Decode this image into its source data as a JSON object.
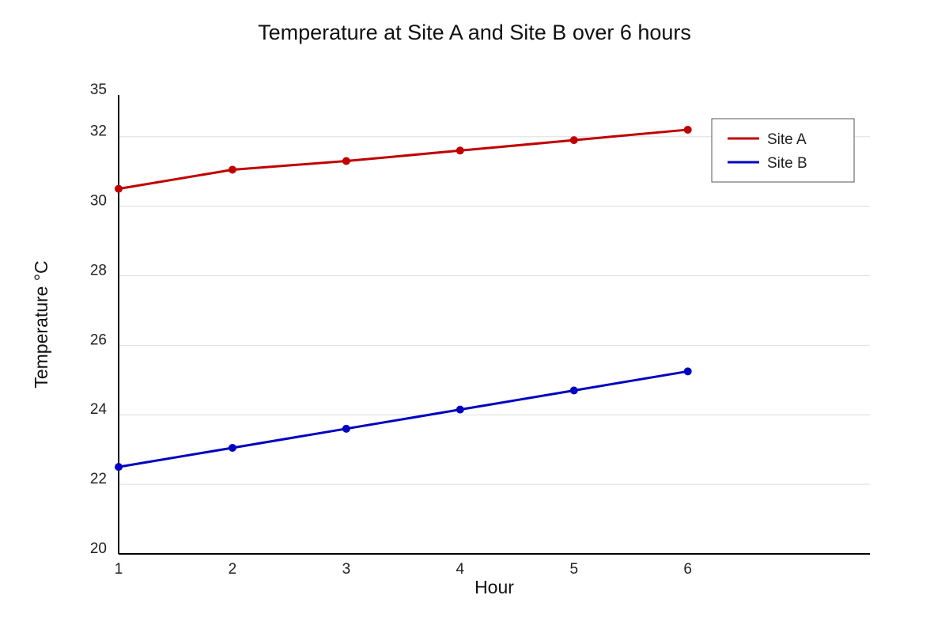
{
  "chart_data": {
    "type": "line",
    "title": "Temperature at Site A and Site B over 6 hours",
    "xlabel": "Hour",
    "ylabel": "Temperature °C",
    "x": [
      1,
      2,
      3,
      4,
      5,
      6
    ],
    "x_ticks": [
      "1",
      "2",
      "3",
      "4",
      "5",
      "6"
    ],
    "y_ticks": [
      "20",
      "22",
      "24",
      "26",
      "28",
      "30",
      "32",
      "35"
    ],
    "xlim": [
      1,
      7.6
    ],
    "ylim": [
      20,
      33.2
    ],
    "grid": true,
    "legend_position": "top-right",
    "series": [
      {
        "name": "Site A",
        "color": "#c00000",
        "values": [
          30.5,
          31.05,
          31.3,
          31.6,
          31.9,
          32.2
        ]
      },
      {
        "name": "Site B",
        "color": "#0000c0",
        "values": [
          22.5,
          23.05,
          23.6,
          24.15,
          24.7,
          25.25
        ]
      }
    ]
  }
}
